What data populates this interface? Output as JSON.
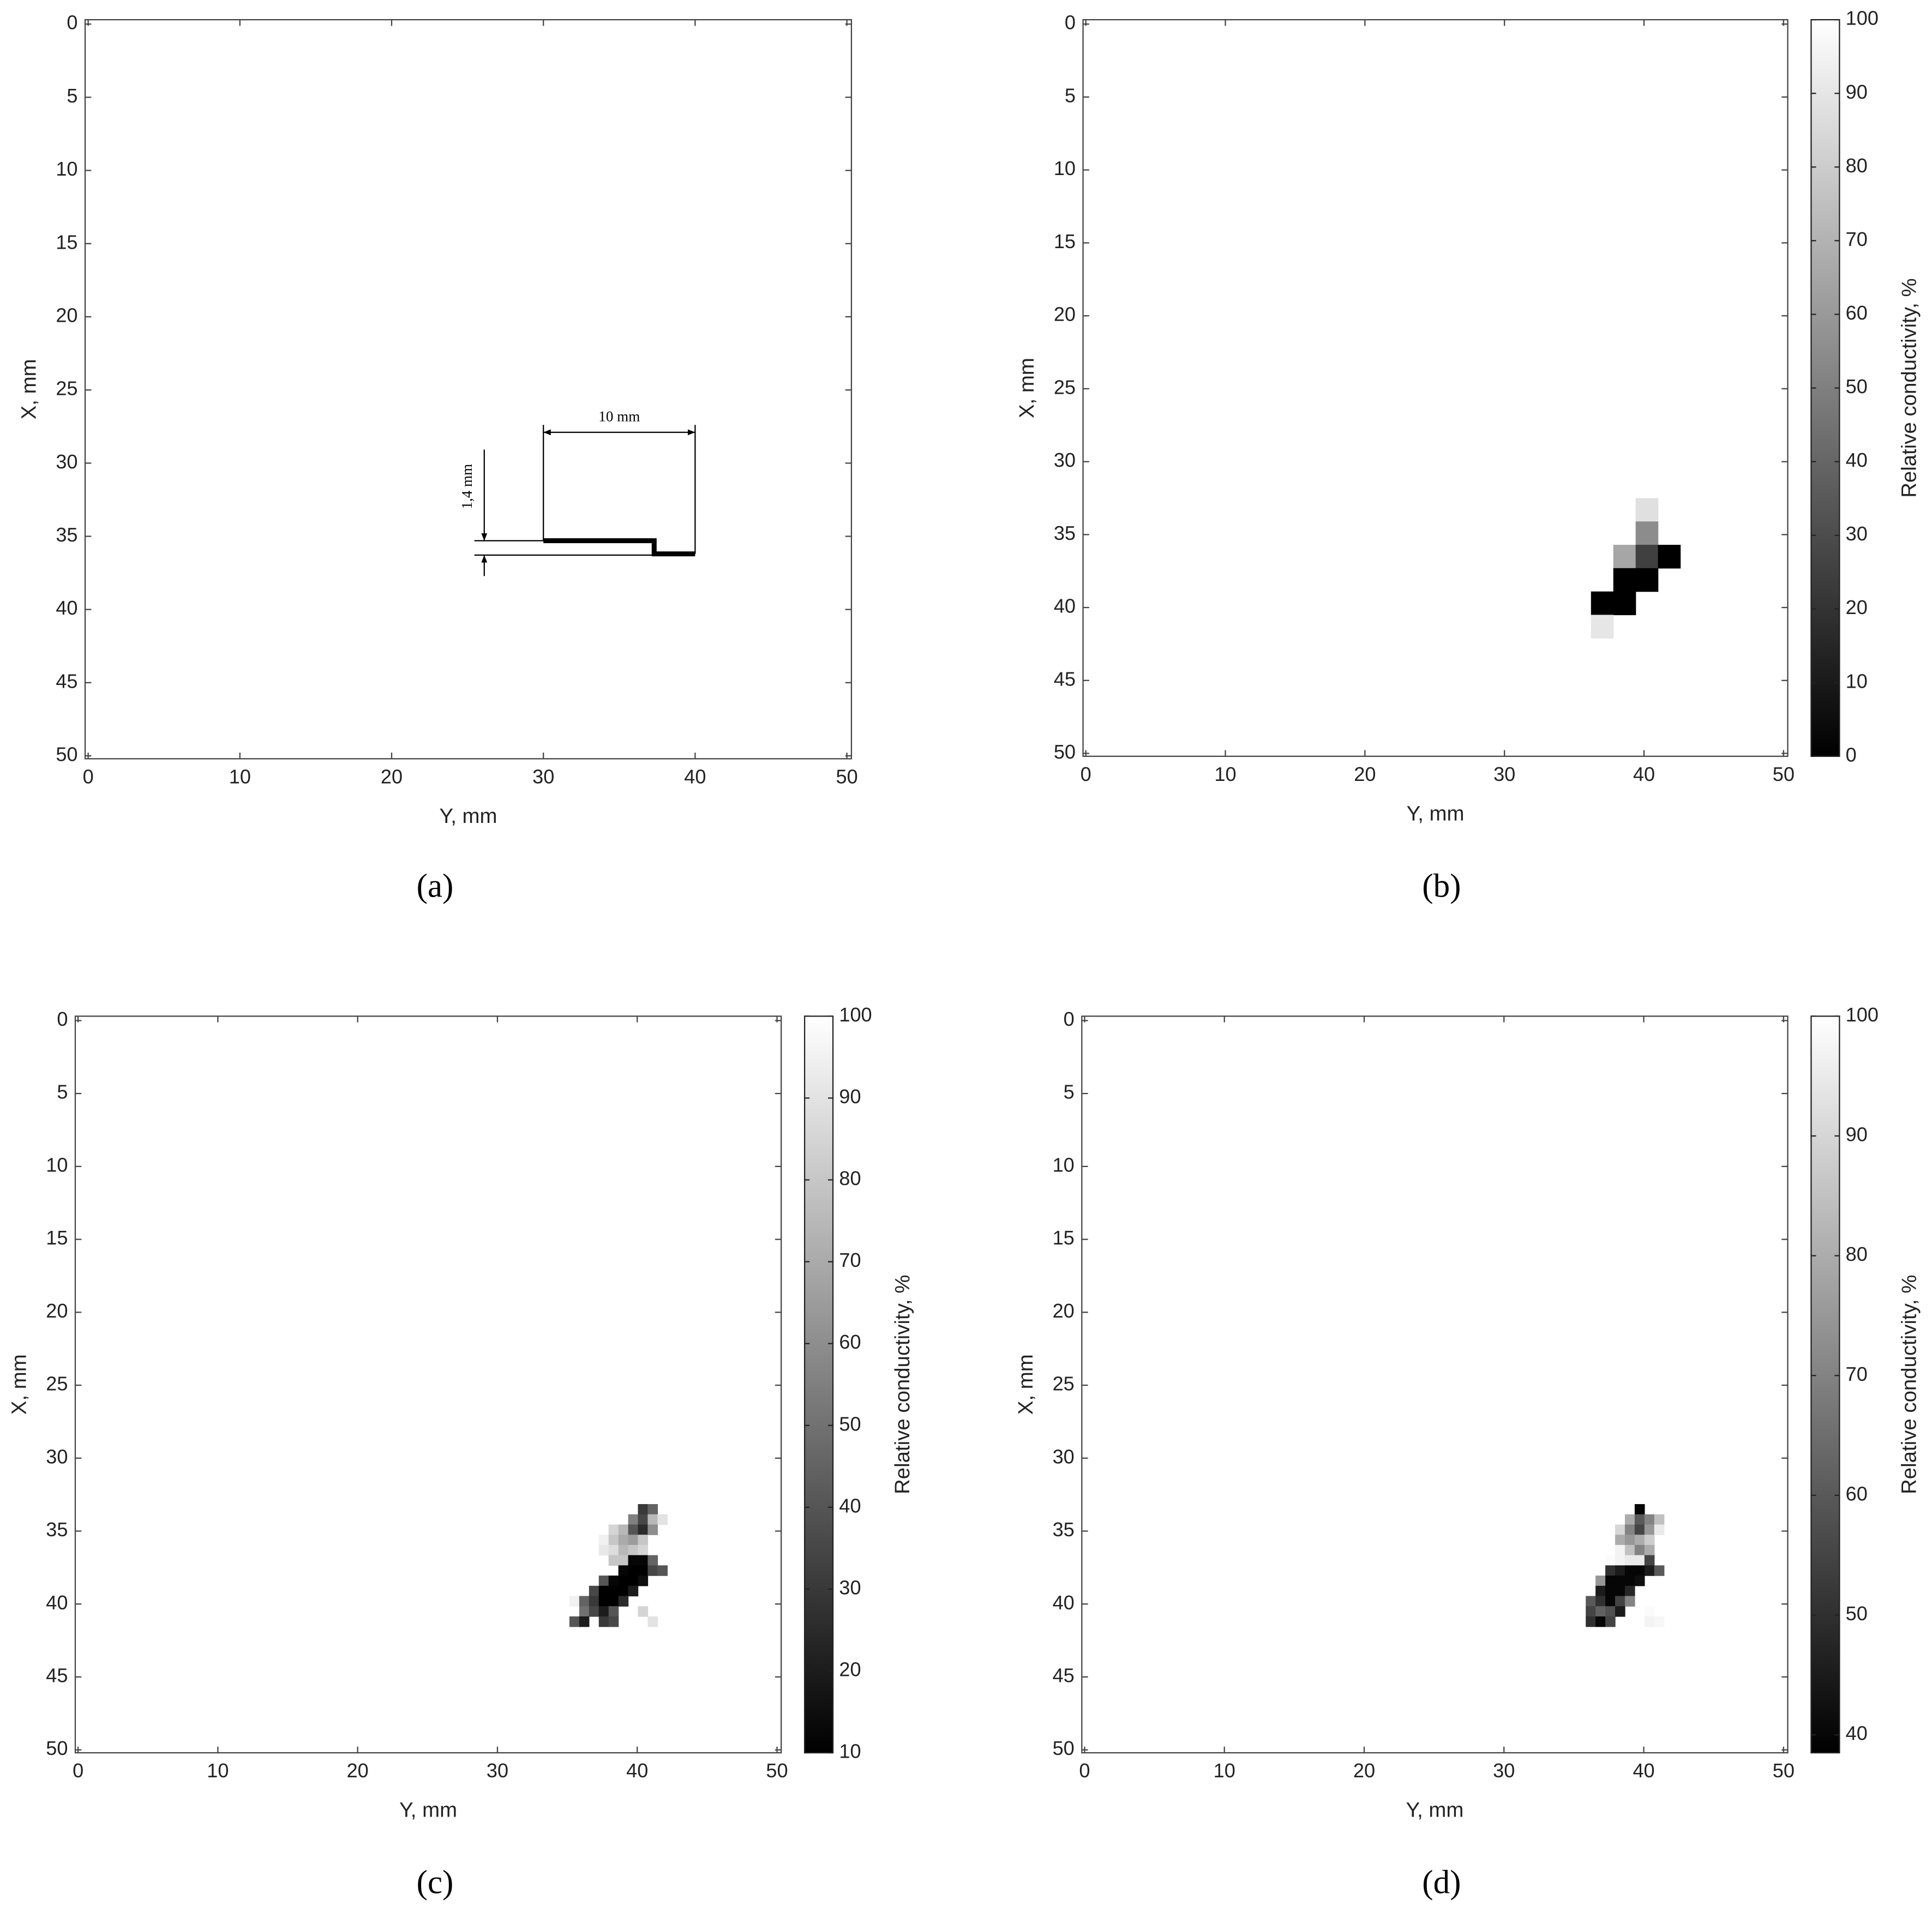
{
  "chart_data": [
    {
      "type": "crack",
      "label": "(a)",
      "xlabel": "Y, mm",
      "ylabel": "X, mm",
      "xlim": [
        -0.2,
        50.3
      ],
      "ylim": [
        50.2,
        -0.3
      ],
      "xticks": [
        0,
        10,
        20,
        30,
        40,
        50
      ],
      "yticks": [
        0,
        5,
        10,
        15,
        20,
        25,
        30,
        35,
        40,
        45,
        50
      ],
      "x": [
        30,
        37.3,
        37.3,
        40
      ],
      "y": [
        35.3,
        35.3,
        36.2,
        36.2
      ],
      "color": "#000000",
      "annotations": [
        "10 mm",
        "1,4 mm"
      ]
    },
    {
      "type": "heatmap",
      "label": "(b)",
      "xlabel": "Y, mm",
      "ylabel": "X, mm",
      "xlim": [
        -0.2,
        50.3
      ],
      "ylim": [
        50.2,
        -0.3
      ],
      "xticks": [
        0,
        10,
        20,
        30,
        40,
        50
      ],
      "yticks": [
        0,
        5,
        10,
        15,
        20,
        25,
        30,
        35,
        40,
        45,
        50
      ],
      "cell_size": 1.6,
      "x": [
        40.2,
        40.2,
        38.6,
        40.2,
        41.8,
        38.6,
        40.2,
        37,
        38.6,
        37
      ],
      "y": [
        33.3,
        34.9,
        36.5,
        36.5,
        36.5,
        38.1,
        38.1,
        39.7,
        39.7,
        41.3
      ],
      "values": [
        88,
        55,
        65,
        25,
        0,
        0,
        0,
        0,
        0,
        90
      ],
      "clim": [
        0,
        100
      ],
      "cticks": [
        0,
        10,
        20,
        30,
        40,
        50,
        60,
        70,
        80,
        90,
        100
      ],
      "colorbar_label": "Relative conductivity, %"
    },
    {
      "type": "heatmap",
      "label": "(c)",
      "xlabel": "Y, mm",
      "ylabel": "X, mm",
      "xlim": [
        -0.2,
        50.3
      ],
      "ylim": [
        50.2,
        -0.3
      ],
      "xticks": [
        0,
        10,
        20,
        30,
        40,
        50
      ],
      "yticks": [
        0,
        5,
        10,
        15,
        20,
        25,
        30,
        35,
        40,
        45,
        50
      ],
      "cell_size": 0.7,
      "x": [
        40.4,
        41.1,
        39.7,
        40.4,
        41.1,
        41.8,
        38.3,
        39.0,
        39.7,
        40.4,
        41.1,
        37.6,
        38.3,
        39.0,
        39.7,
        40.4,
        37.6,
        38.3,
        39.0,
        39.7,
        40.4,
        38.3,
        39.0,
        39.7,
        40.4,
        41.1,
        39.0,
        39.7,
        40.4,
        41.1,
        41.8,
        37.6,
        38.3,
        39.0,
        39.7,
        40.4,
        36.9,
        37.6,
        38.3,
        39.0,
        39.7,
        35.5,
        36.2,
        36.9,
        37.6,
        38.3,
        39.0,
        36.2,
        36.9,
        37.6,
        38.3,
        40.4,
        35.5,
        36.2,
        37.6,
        38.3,
        41.1
      ],
      "y": [
        33.5,
        33.5,
        34.2,
        34.2,
        34.2,
        34.2,
        34.9,
        34.9,
        34.9,
        34.9,
        34.9,
        35.6,
        35.6,
        35.6,
        35.6,
        35.6,
        36.3,
        36.3,
        36.3,
        36.3,
        36.3,
        37.0,
        37.0,
        37.0,
        37.0,
        37.0,
        37.7,
        37.7,
        37.7,
        37.7,
        37.7,
        38.4,
        38.4,
        38.4,
        38.4,
        38.4,
        39.1,
        39.1,
        39.1,
        39.1,
        39.1,
        39.8,
        39.8,
        39.8,
        39.8,
        39.8,
        39.8,
        40.5,
        40.5,
        40.5,
        40.5,
        40.5,
        41.2,
        41.2,
        41.2,
        41.2,
        41.2
      ],
      "values": [
        30,
        45,
        55,
        35,
        75,
        90,
        85,
        75,
        40,
        25,
        60,
        95,
        80,
        70,
        65,
        80,
        92,
        88,
        75,
        80,
        85,
        80,
        80,
        12,
        12,
        45,
        12,
        10,
        10,
        35,
        40,
        40,
        12,
        10,
        10,
        15,
        35,
        10,
        10,
        10,
        20,
        95,
        45,
        30,
        10,
        10,
        25,
        50,
        35,
        20,
        40,
        85,
        40,
        20,
        30,
        35,
        90
      ],
      "clim": [
        10,
        100
      ],
      "cticks": [
        10,
        20,
        30,
        40,
        50,
        60,
        70,
        80,
        90,
        100
      ],
      "colorbar_label": "Relative conductivity, %"
    },
    {
      "type": "heatmap",
      "label": "(d)",
      "xlabel": "Y, mm",
      "ylabel": "X, mm",
      "xlim": [
        -0.2,
        50.3
      ],
      "ylim": [
        50.2,
        -0.3
      ],
      "xticks": [
        0,
        10,
        20,
        30,
        40,
        50
      ],
      "yticks": [
        0,
        5,
        10,
        15,
        20,
        25,
        30,
        35,
        40,
        45,
        50
      ],
      "cell_size": 0.7,
      "x": [
        39.7,
        39.0,
        39.7,
        40.4,
        41.1,
        38.3,
        39.0,
        39.7,
        40.4,
        41.1,
        38.3,
        39.0,
        39.7,
        40.4,
        38.3,
        39.0,
        39.7,
        40.4,
        37.6,
        38.3,
        39.0,
        39.7,
        40.4,
        37.6,
        38.3,
        39.0,
        39.7,
        40.4,
        41.1,
        36.9,
        37.6,
        38.3,
        39.0,
        39.7,
        36.9,
        37.6,
        38.3,
        39.0,
        36.2,
        36.9,
        37.6,
        38.3,
        39.0,
        36.2,
        36.9,
        37.6,
        38.3,
        40.4,
        36.2,
        36.9,
        37.6,
        40.4,
        41.1
      ],
      "y": [
        33.5,
        34.2,
        34.2,
        34.2,
        34.2,
        34.9,
        34.9,
        34.9,
        34.9,
        34.9,
        35.6,
        35.6,
        35.6,
        35.6,
        36.3,
        36.3,
        36.3,
        36.3,
        37.0,
        37.0,
        37.0,
        37.0,
        37.0,
        37.7,
        37.7,
        37.7,
        37.7,
        37.7,
        37.7,
        38.4,
        38.4,
        38.4,
        38.4,
        38.4,
        39.1,
        39.1,
        39.1,
        39.1,
        39.8,
        39.8,
        39.8,
        39.8,
        39.8,
        40.5,
        40.5,
        40.5,
        40.5,
        40.5,
        41.2,
        41.2,
        41.2,
        41.2,
        41.2
      ],
      "values": [
        40,
        80,
        60,
        70,
        85,
        90,
        70,
        55,
        75,
        95,
        80,
        75,
        80,
        88,
        97,
        85,
        70,
        80,
        99,
        97,
        95,
        95,
        55,
        50,
        45,
        40,
        40,
        45,
        60,
        75,
        40,
        40,
        40,
        42,
        45,
        40,
        40,
        48,
        60,
        50,
        40,
        55,
        70,
        55,
        62,
        58,
        45,
        99,
        50,
        40,
        55,
        97,
        98
      ],
      "clim": [
        38.5,
        100
      ],
      "cticks": [
        40,
        50,
        60,
        70,
        80,
        90,
        100
      ],
      "colorbar_label": "Relative conductivity, %"
    }
  ]
}
